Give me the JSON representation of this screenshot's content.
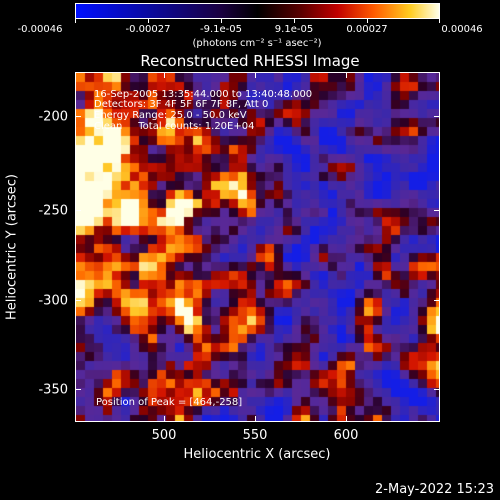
{
  "colorbar": {
    "tick_labels": [
      "-0.00046",
      "-0.00027",
      "-9.1e-05",
      "9.1e-05",
      "0.00027",
      "0.00046"
    ],
    "units": "(photons cm⁻² s⁻¹ asec⁻²)",
    "colors": [
      "#0010ff",
      "#0a0aa0",
      "#1a0040",
      "#000000",
      "#5a0000",
      "#c00000",
      "#ff5a00",
      "#ffcc20",
      "#ffffe8"
    ]
  },
  "plot": {
    "title": "Reconstructed RHESSI Image",
    "xlabel": "Heliocentric X (arcsec)",
    "ylabel": "Heliocentric Y (arcsec)",
    "x_ticks": [
      "500",
      "550",
      "600"
    ],
    "y_ticks": [
      "-200",
      "-250",
      "-300",
      "-350"
    ],
    "xlim": [
      455,
      640
    ],
    "ylim": [
      -370,
      -172
    ],
    "info_lines": [
      "16-Sep-2005 13:35:44.000 to 13:40:48.000",
      "Detectors: 3F 4F 5F 6F 7F 8F, Att 0",
      "Energy Range: 25.0 - 50.0 keV",
      "Clean     Total counts: 1.20E+04"
    ],
    "peak_text": "Position of Peak = [464,-258]"
  },
  "footer": {
    "timestamp": "2-May-2022 15:23"
  }
}
